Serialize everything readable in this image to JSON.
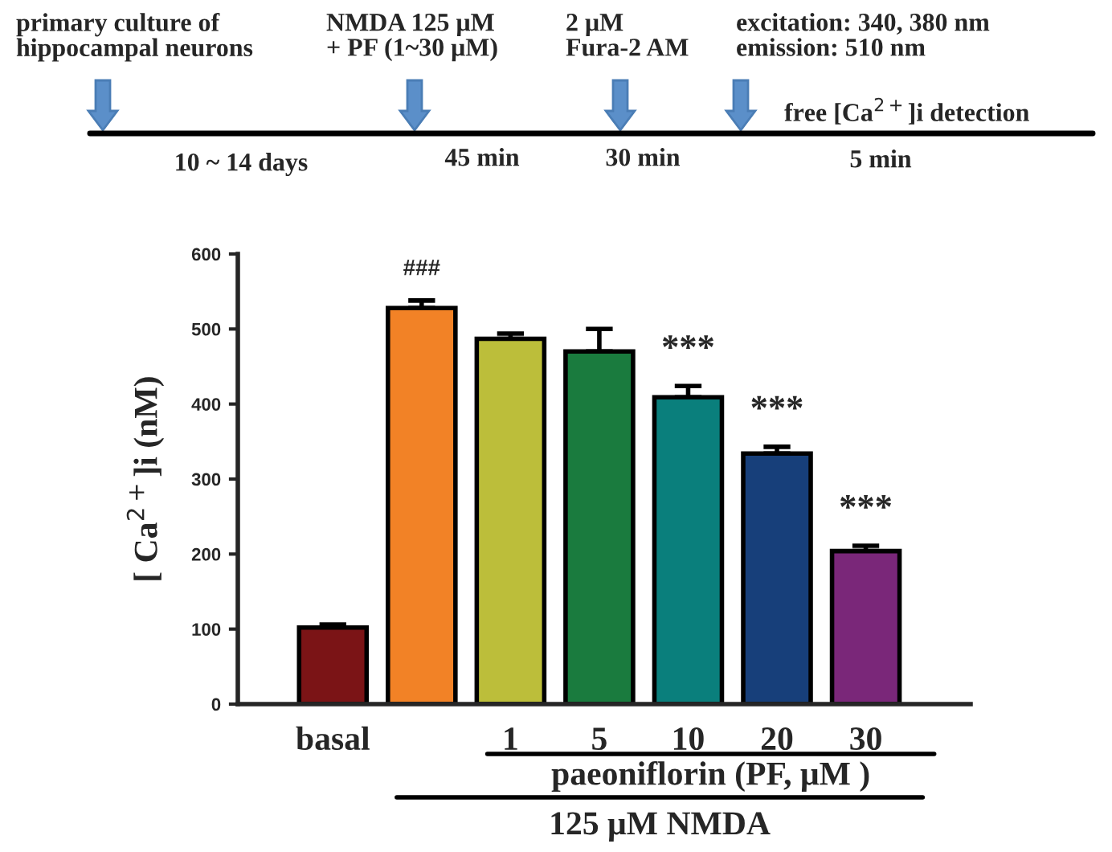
{
  "chart_data": {
    "type": "bar",
    "ylabel": "[ Ca$^{2+}$]i (nM)",
    "categories": [
      "basal",
      null,
      "1",
      "5",
      "10",
      "20",
      "30"
    ],
    "values": [
      102,
      528,
      487,
      470,
      409,
      334,
      204
    ],
    "errors": [
      4,
      10,
      7,
      30,
      15,
      9,
      7
    ],
    "colors": [
      "#7b1416",
      "#f28226",
      "#bcbe3a",
      "#1a7b3e",
      "#0a7f7c",
      "#173f7a",
      "#7a2779"
    ],
    "ylim": [
      0,
      600
    ],
    "yticks": [
      0,
      100,
      200,
      300,
      400,
      500,
      600
    ],
    "annotations": [
      "primary culture of\nhippocampal neurons",
      "NMDA 125 μM\n+ PF (1~30 μM)",
      "2 μM\nFura-2 AM",
      "excitation: 340, 380 nm\nemission: 510 nm",
      "free [Ca$^{2+}$]i detection",
      "10 ~ 14 days",
      "45 min",
      "30 min",
      "5 min",
      "###",
      "***",
      "***",
      "***",
      "paeoniflorin (PF, μM )",
      "125 μM NMDA"
    ]
  }
}
